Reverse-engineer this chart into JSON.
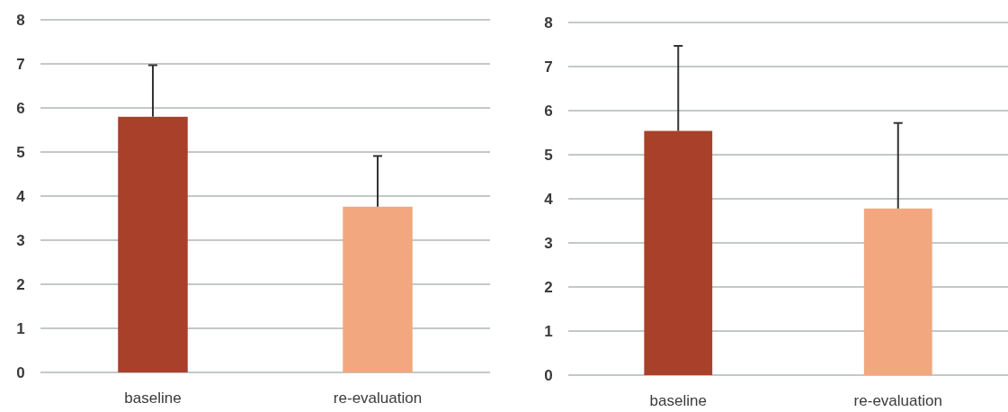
{
  "chart_data": [
    {
      "type": "bar",
      "categories": [
        "baseline",
        "re-evaluation"
      ],
      "values": [
        5.8,
        3.76
      ],
      "colors": [
        "#a8402a",
        "#f2a77e"
      ],
      "errors": [
        [
          5.8,
          6.97
        ],
        [
          3.76,
          4.91
        ]
      ],
      "ylim": [
        0,
        8
      ],
      "yticks": [
        0,
        1,
        2,
        3,
        4,
        5,
        6,
        7,
        8
      ],
      "grid": "y"
    },
    {
      "type": "bar",
      "categories": [
        "baseline",
        "re-evaluation"
      ],
      "values": [
        5.54,
        3.78
      ],
      "colors": [
        "#a8402a",
        "#f2a77e"
      ],
      "errors": [
        [
          5.54,
          7.47
        ],
        [
          3.78,
          5.72
        ]
      ],
      "ylim": [
        0,
        8
      ],
      "yticks": [
        0,
        1,
        2,
        3,
        4,
        5,
        6,
        7,
        8
      ],
      "grid": "y"
    }
  ]
}
